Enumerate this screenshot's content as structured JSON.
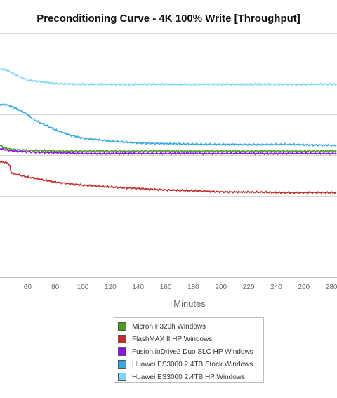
{
  "chart_data": {
    "type": "line",
    "title": "Preconditioning Curve - 4K 100% Write [Throughput]",
    "xlabel": "Minutes",
    "ylabel": "",
    "xlim": [
      40,
      284
    ],
    "ylim": [
      0,
      300
    ],
    "x_ticks": [
      60,
      80,
      100,
      120,
      140,
      160,
      180,
      200,
      220,
      240,
      260,
      280
    ],
    "y_gridlines": [
      50,
      100,
      150,
      200,
      250
    ],
    "grid": true,
    "legend_position": "bottom",
    "series": [
      {
        "name": "Micron P320h Windows",
        "color": "#4f9a1f",
        "x": [
          40,
          43,
          46,
          50,
          60,
          80,
          100,
          150,
          200,
          250,
          284
        ],
        "y": [
          162,
          159,
          158,
          157,
          156,
          155,
          155,
          155,
          155,
          155,
          155
        ]
      },
      {
        "name": "FlashMAX II HP Windows",
        "color": "#c0302b",
        "x": [
          40,
          44,
          46,
          47,
          48,
          49,
          50,
          55,
          60,
          70,
          80,
          100,
          120,
          150,
          200,
          250,
          284
        ],
        "y": [
          142,
          141,
          140,
          138,
          128,
          128,
          127,
          125,
          123,
          120,
          117,
          113,
          111,
          108,
          105,
          104,
          104
        ]
      },
      {
        "name": "Fusion ioDrive2 Duo SLC HP Windows",
        "color": "#8a12e3",
        "x": [
          40,
          45,
          50,
          60,
          80,
          100,
          150,
          200,
          250,
          284
        ],
        "y": [
          158,
          156,
          155,
          154,
          153,
          152,
          152,
          152,
          152,
          152
        ]
      },
      {
        "name": "Huawei ES3000 2.4TB Stock Windows",
        "color": "#38a9dc",
        "x": [
          40,
          44,
          48,
          52,
          56,
          60,
          65,
          70,
          80,
          90,
          100,
          120,
          140,
          160,
          200,
          250,
          284
        ],
        "y": [
          212,
          212,
          210,
          207,
          204,
          200,
          193,
          189,
          181,
          175,
          171,
          167,
          165,
          164,
          163,
          163,
          162
        ]
      },
      {
        "name": "Huawei ES3000 2.4TB HP Windows",
        "color": "#79d7f7",
        "x": [
          40,
          44,
          48,
          52,
          56,
          60,
          70,
          80,
          100,
          120,
          150,
          200,
          250,
          284
        ],
        "y": [
          256,
          255,
          252,
          248,
          245,
          242,
          240,
          238,
          237,
          237,
          237,
          237,
          237,
          237
        ]
      }
    ]
  }
}
